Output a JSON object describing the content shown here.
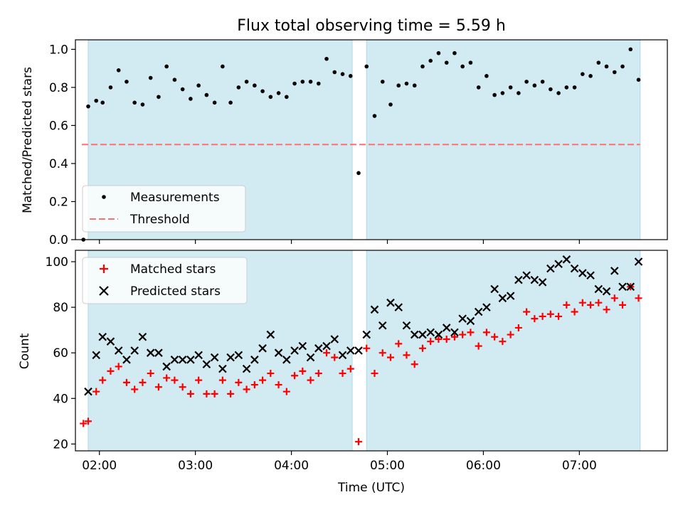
{
  "chart_data": [
    {
      "type": "scatter",
      "title": "Flux total observing time = 5.59 h",
      "xlabel": "",
      "ylabel": "Matched/Predicted stars",
      "xlim": [
        "01:45",
        "07:55"
      ],
      "ylim": [
        0,
        1.05
      ],
      "yticks": [
        0.0,
        0.2,
        0.4,
        0.6,
        0.8,
        1.0
      ],
      "ytick_labels": [
        "0.0",
        "0.2",
        "0.4",
        "0.6",
        "0.8",
        "1.0"
      ],
      "xticks": [
        "02:00",
        "03:00",
        "04:00",
        "05:00",
        "06:00",
        "07:00"
      ],
      "xtick_labels_visible": false,
      "grid": false,
      "legend": {
        "position": "lower-left",
        "entries": [
          "Measurements",
          "Threshold"
        ]
      },
      "shaded_intervals": [
        {
          "start": "01:53",
          "end": "04:38",
          "color": "#add8e6"
        },
        {
          "start": "04:47",
          "end": "07:38",
          "color": "#add8e6"
        }
      ],
      "threshold": {
        "name": "Threshold",
        "value": 0.5,
        "x_range": [
          "01:49",
          "07:38"
        ],
        "color": "#ff7070",
        "style": "dashed"
      },
      "series": [
        {
          "name": "Measurements",
          "color": "#000000",
          "marker": "dot",
          "points": [
            [
              "01:50",
              0.0
            ],
            [
              "01:53",
              0.7
            ],
            [
              "01:58",
              0.73
            ],
            [
              "02:02",
              0.72
            ],
            [
              "02:07",
              0.8
            ],
            [
              "02:12",
              0.89
            ],
            [
              "02:17",
              0.83
            ],
            [
              "02:22",
              0.72
            ],
            [
              "02:27",
              0.71
            ],
            [
              "02:32",
              0.85
            ],
            [
              "02:37",
              0.75
            ],
            [
              "02:42",
              0.91
            ],
            [
              "02:47",
              0.84
            ],
            [
              "02:52",
              0.79
            ],
            [
              "02:57",
              0.74
            ],
            [
              "03:02",
              0.81
            ],
            [
              "03:07",
              0.76
            ],
            [
              "03:12",
              0.72
            ],
            [
              "03:17",
              0.91
            ],
            [
              "03:22",
              0.72
            ],
            [
              "03:27",
              0.8
            ],
            [
              "03:32",
              0.83
            ],
            [
              "03:37",
              0.81
            ],
            [
              "03:42",
              0.78
            ],
            [
              "03:47",
              0.75
            ],
            [
              "03:52",
              0.77
            ],
            [
              "03:57",
              0.75
            ],
            [
              "04:02",
              0.82
            ],
            [
              "04:07",
              0.83
            ],
            [
              "04:12",
              0.83
            ],
            [
              "04:17",
              0.82
            ],
            [
              "04:22",
              0.95
            ],
            [
              "04:27",
              0.88
            ],
            [
              "04:32",
              0.87
            ],
            [
              "04:37",
              0.86
            ],
            [
              "04:42",
              0.35
            ],
            [
              "04:47",
              0.91
            ],
            [
              "04:52",
              0.65
            ],
            [
              "04:57",
              0.83
            ],
            [
              "05:02",
              0.71
            ],
            [
              "05:07",
              0.81
            ],
            [
              "05:12",
              0.82
            ],
            [
              "05:17",
              0.81
            ],
            [
              "05:22",
              0.91
            ],
            [
              "05:27",
              0.94
            ],
            [
              "05:32",
              0.98
            ],
            [
              "05:37",
              0.93
            ],
            [
              "05:42",
              0.98
            ],
            [
              "05:47",
              0.91
            ],
            [
              "05:52",
              0.93
            ],
            [
              "05:57",
              0.8
            ],
            [
              "06:02",
              0.86
            ],
            [
              "06:07",
              0.76
            ],
            [
              "06:12",
              0.77
            ],
            [
              "06:17",
              0.8
            ],
            [
              "06:22",
              0.77
            ],
            [
              "06:27",
              0.83
            ],
            [
              "06:32",
              0.81
            ],
            [
              "06:37",
              0.83
            ],
            [
              "06:42",
              0.79
            ],
            [
              "06:47",
              0.77
            ],
            [
              "06:52",
              0.8
            ],
            [
              "06:57",
              0.8
            ],
            [
              "07:02",
              0.87
            ],
            [
              "07:07",
              0.86
            ],
            [
              "07:12",
              0.93
            ],
            [
              "07:17",
              0.91
            ],
            [
              "07:22",
              0.88
            ],
            [
              "07:27",
              0.91
            ],
            [
              "07:32",
              1.0
            ],
            [
              "07:37",
              0.84
            ]
          ]
        }
      ]
    },
    {
      "type": "scatter",
      "title": "",
      "xlabel": "Time (UTC)",
      "ylabel": "Count",
      "xlim": [
        "01:45",
        "07:55"
      ],
      "ylim": [
        17,
        105
      ],
      "yticks": [
        20,
        40,
        60,
        80,
        100
      ],
      "ytick_labels": [
        "20",
        "40",
        "60",
        "80",
        "100"
      ],
      "xticks": [
        "02:00",
        "03:00",
        "04:00",
        "05:00",
        "06:00",
        "07:00"
      ],
      "xtick_labels": [
        "02:00",
        "03:00",
        "04:00",
        "05:00",
        "06:00",
        "07:00"
      ],
      "grid": false,
      "legend": {
        "position": "upper-left",
        "entries": [
          "Matched stars",
          "Predicted stars"
        ]
      },
      "shaded_intervals": [
        {
          "start": "01:53",
          "end": "04:38",
          "color": "#add8e6"
        },
        {
          "start": "04:47",
          "end": "07:38",
          "color": "#add8e6"
        }
      ],
      "series": [
        {
          "name": "Matched stars",
          "color": "#ff0000",
          "marker": "plus",
          "points": [
            [
              "01:50",
              29
            ],
            [
              "01:53",
              30
            ],
            [
              "01:58",
              43
            ],
            [
              "02:02",
              48
            ],
            [
              "02:07",
              52
            ],
            [
              "02:12",
              54
            ],
            [
              "02:17",
              47
            ],
            [
              "02:22",
              44
            ],
            [
              "02:27",
              47
            ],
            [
              "02:32",
              51
            ],
            [
              "02:37",
              45
            ],
            [
              "02:42",
              49
            ],
            [
              "02:47",
              48
            ],
            [
              "02:52",
              45
            ],
            [
              "02:57",
              42
            ],
            [
              "03:02",
              48
            ],
            [
              "03:07",
              42
            ],
            [
              "03:12",
              42
            ],
            [
              "03:17",
              48
            ],
            [
              "03:22",
              42
            ],
            [
              "03:27",
              47
            ],
            [
              "03:32",
              44
            ],
            [
              "03:37",
              46
            ],
            [
              "03:42",
              48
            ],
            [
              "03:47",
              51
            ],
            [
              "03:52",
              46
            ],
            [
              "03:57",
              43
            ],
            [
              "04:02",
              50
            ],
            [
              "04:07",
              52
            ],
            [
              "04:12",
              48
            ],
            [
              "04:17",
              51
            ],
            [
              "04:22",
              60
            ],
            [
              "04:27",
              58
            ],
            [
              "04:32",
              51
            ],
            [
              "04:37",
              53
            ],
            [
              "04:42",
              21
            ],
            [
              "04:47",
              62
            ],
            [
              "04:52",
              51
            ],
            [
              "04:57",
              60
            ],
            [
              "05:02",
              58
            ],
            [
              "05:07",
              64
            ],
            [
              "05:12",
              59
            ],
            [
              "05:17",
              55
            ],
            [
              "05:22",
              62
            ],
            [
              "05:27",
              65
            ],
            [
              "05:32",
              66
            ],
            [
              "05:37",
              66
            ],
            [
              "05:42",
              67
            ],
            [
              "05:47",
              68
            ],
            [
              "05:52",
              69
            ],
            [
              "05:57",
              63
            ],
            [
              "06:02",
              69
            ],
            [
              "06:07",
              67
            ],
            [
              "06:12",
              65
            ],
            [
              "06:17",
              68
            ],
            [
              "06:22",
              71
            ],
            [
              "06:27",
              78
            ],
            [
              "06:32",
              75
            ],
            [
              "06:37",
              76
            ],
            [
              "06:42",
              77
            ],
            [
              "06:47",
              76
            ],
            [
              "06:52",
              81
            ],
            [
              "06:57",
              78
            ],
            [
              "07:02",
              82
            ],
            [
              "07:07",
              81
            ],
            [
              "07:12",
              82
            ],
            [
              "07:17",
              79
            ],
            [
              "07:22",
              84
            ],
            [
              "07:27",
              81
            ],
            [
              "07:32",
              89
            ],
            [
              "07:37",
              84
            ]
          ]
        },
        {
          "name": "Predicted stars",
          "color": "#000000",
          "marker": "x",
          "points": [
            [
              "01:53",
              43
            ],
            [
              "01:58",
              59
            ],
            [
              "02:02",
              67
            ],
            [
              "02:07",
              65
            ],
            [
              "02:12",
              61
            ],
            [
              "02:17",
              57
            ],
            [
              "02:22",
              61
            ],
            [
              "02:27",
              67
            ],
            [
              "02:32",
              60
            ],
            [
              "02:37",
              60
            ],
            [
              "02:42",
              54
            ],
            [
              "02:47",
              57
            ],
            [
              "02:52",
              57
            ],
            [
              "02:57",
              57
            ],
            [
              "03:02",
              59
            ],
            [
              "03:07",
              55
            ],
            [
              "03:12",
              58
            ],
            [
              "03:17",
              53
            ],
            [
              "03:22",
              58
            ],
            [
              "03:27",
              59
            ],
            [
              "03:32",
              53
            ],
            [
              "03:37",
              57
            ],
            [
              "03:42",
              62
            ],
            [
              "03:47",
              68
            ],
            [
              "03:52",
              60
            ],
            [
              "03:57",
              57
            ],
            [
              "04:02",
              61
            ],
            [
              "04:07",
              63
            ],
            [
              "04:12",
              58
            ],
            [
              "04:17",
              62
            ],
            [
              "04:22",
              63
            ],
            [
              "04:27",
              66
            ],
            [
              "04:32",
              59
            ],
            [
              "04:37",
              61
            ],
            [
              "04:42",
              61
            ],
            [
              "04:47",
              68
            ],
            [
              "04:52",
              79
            ],
            [
              "04:57",
              72
            ],
            [
              "05:02",
              82
            ],
            [
              "05:07",
              80
            ],
            [
              "05:12",
              72
            ],
            [
              "05:17",
              68
            ],
            [
              "05:22",
              68
            ],
            [
              "05:27",
              69
            ],
            [
              "05:32",
              68
            ],
            [
              "05:37",
              71
            ],
            [
              "05:42",
              69
            ],
            [
              "05:47",
              75
            ],
            [
              "05:52",
              74
            ],
            [
              "05:57",
              78
            ],
            [
              "06:02",
              80
            ],
            [
              "06:07",
              88
            ],
            [
              "06:12",
              84
            ],
            [
              "06:17",
              85
            ],
            [
              "06:22",
              92
            ],
            [
              "06:27",
              94
            ],
            [
              "06:32",
              92
            ],
            [
              "06:37",
              91
            ],
            [
              "06:42",
              97
            ],
            [
              "06:47",
              99
            ],
            [
              "06:52",
              101
            ],
            [
              "06:57",
              97
            ],
            [
              "07:02",
              95
            ],
            [
              "07:07",
              94
            ],
            [
              "07:12",
              88
            ],
            [
              "07:17",
              87
            ],
            [
              "07:22",
              96
            ],
            [
              "07:27",
              89
            ],
            [
              "07:32",
              89
            ],
            [
              "07:37",
              100
            ]
          ]
        }
      ]
    }
  ]
}
